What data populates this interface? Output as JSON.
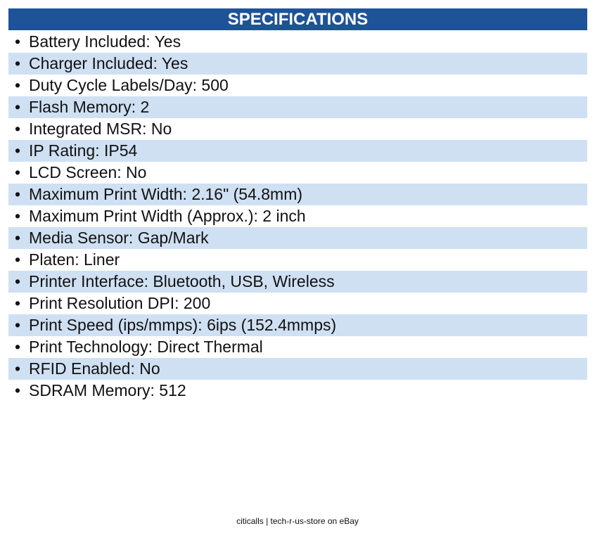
{
  "header": {
    "title": "SPECIFICATIONS"
  },
  "items": [
    "Battery Included: Yes",
    "Charger Included: Yes",
    "Duty Cycle Labels/Day: 500",
    "Flash Memory: 2",
    "Integrated MSR: No",
    "IP Rating: IP54",
    "LCD Screen: No",
    "Maximum Print Width: 2.16\" (54.8mm)",
    "Maximum Print Width (Approx.): 2 inch",
    "Media Sensor: Gap/Mark",
    "Platen: Liner",
    "Printer Interface: Bluetooth, USB, Wireless",
    "Print Resolution DPI: 200",
    "Print Speed (ips/mmps): 6ips (152.4mmps)",
    "Print Technology: Direct Thermal",
    "RFID Enabled: No",
    "SDRAM Memory: 512"
  ],
  "footer": "citicalls | tech-r-us-store on eBay"
}
